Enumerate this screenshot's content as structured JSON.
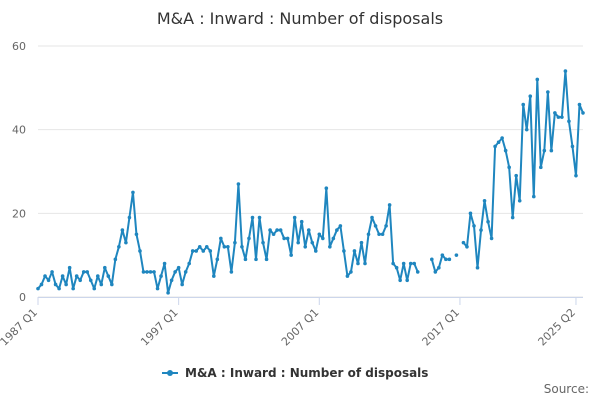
{
  "colors": {
    "series": "#1f86bf",
    "grid": "#e6e6e6",
    "axis": "#ccd6eb"
  },
  "source_label": "Source:",
  "chart_data": {
    "type": "line",
    "title": "M&A : Inward : Number of disposals",
    "xlabel": "",
    "ylabel": "",
    "x_ticks": [
      "1987 Q1",
      "1997 Q1",
      "2007 Q1",
      "2017 Q1",
      "2025 Q2"
    ],
    "y_ticks": [
      "0",
      "20",
      "40",
      "60"
    ],
    "ylim": [
      0,
      60
    ],
    "grid": true,
    "legend": "bottom",
    "series": [
      {
        "name": "M&A : Inward : Number of disposals",
        "start": "1987 Q1",
        "values": [
          2,
          3,
          5,
          4,
          6,
          3,
          2,
          5,
          3,
          7,
          2,
          5,
          4,
          6,
          6,
          4,
          2,
          5,
          3,
          7,
          5,
          3,
          9,
          12,
          16,
          13,
          19,
          25,
          15,
          11,
          6,
          6,
          6,
          6,
          2,
          5,
          8,
          1,
          4,
          6,
          7,
          3,
          6,
          8,
          11,
          11,
          12,
          11,
          12,
          11,
          5,
          9,
          14,
          12,
          12,
          6,
          13,
          27,
          12,
          9,
          14,
          19,
          9,
          19,
          13,
          9,
          16,
          15,
          16,
          16,
          14,
          14,
          10,
          19,
          13,
          18,
          12,
          16,
          13,
          11,
          15,
          14,
          26,
          12,
          14,
          16,
          17,
          11,
          5,
          6,
          11,
          8,
          13,
          8,
          15,
          19,
          17,
          15,
          15,
          17,
          22,
          8,
          7,
          4,
          8,
          4,
          8,
          8,
          6,
          null,
          null,
          null,
          9,
          6,
          7,
          10,
          9,
          9,
          null,
          10,
          null,
          13,
          12,
          20,
          17,
          7,
          16,
          23,
          18,
          14,
          36,
          37,
          38,
          35,
          31,
          19,
          29,
          23,
          46,
          40,
          48,
          24,
          52,
          31,
          35,
          49,
          35,
          44,
          43,
          43,
          54,
          42,
          36,
          29,
          46,
          44
        ]
      }
    ]
  }
}
